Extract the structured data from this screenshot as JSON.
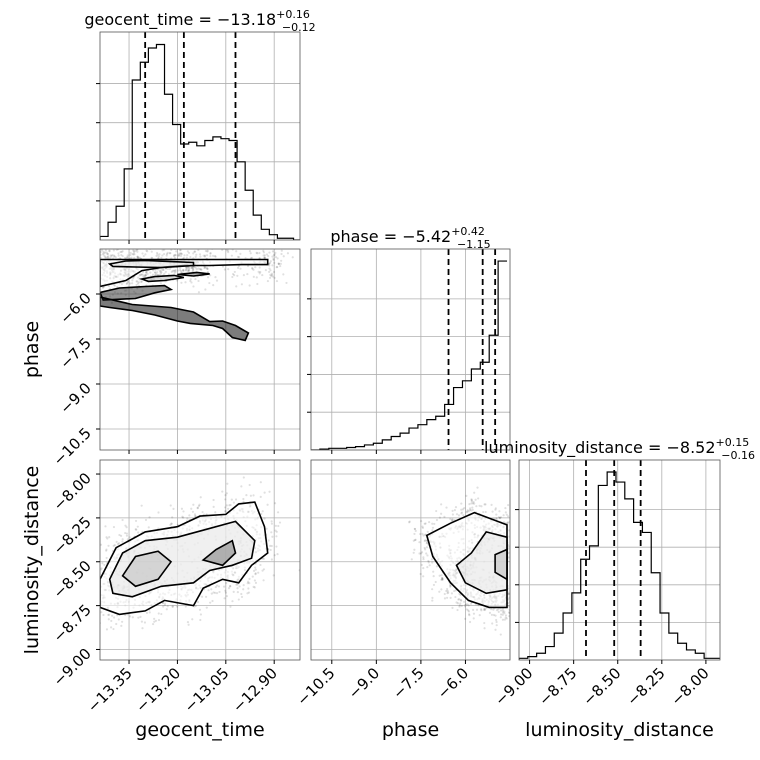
{
  "chart_data": {
    "type": "corner",
    "parameters": [
      "geocent_time",
      "phase",
      "luminosity_distance"
    ],
    "ranges": {
      "geocent_time": [
        -13.44,
        -12.82
      ],
      "phase": [
        -11.2,
        -4.5
      ],
      "luminosity_distance": [
        -9.06,
        -7.92
      ]
    },
    "ticks": {
      "geocent_time": [
        -13.35,
        -13.2,
        -13.05,
        -12.9
      ],
      "phase": [
        -10.5,
        -9.0,
        -7.5,
        -6.0
      ],
      "luminosity_distance": [
        -9.0,
        -8.75,
        -8.5,
        -8.25,
        -8.0
      ]
    },
    "tick_labels": {
      "geocent_time": [
        "−13.35",
        "−13.20",
        "−13.05",
        "−12.90"
      ],
      "phase": [
        "−10.5",
        "−9.0",
        "−7.5",
        "−6.0"
      ],
      "luminosity_distance": [
        "−9.00",
        "−8.75",
        "−8.50",
        "−8.25",
        "−8.00"
      ]
    },
    "titles": {
      "geocent_time": {
        "name": "geocent_time",
        "median": "−13.18",
        "plus": "+0.16",
        "minus": "−0.12"
      },
      "phase": {
        "name": "phase",
        "median": "−5.42",
        "plus": "+0.42",
        "minus": "−1.15"
      },
      "luminosity_distance": {
        "name": "luminosity_distance",
        "median": "−8.52",
        "plus": "+0.15",
        "minus": "−0.16"
      }
    },
    "quantiles": {
      "geocent_time": [
        -13.3,
        -13.18,
        -13.02
      ],
      "phase": [
        -6.57,
        -5.42,
        -5.0
      ],
      "luminosity_distance": [
        -8.68,
        -8.52,
        -8.37
      ]
    },
    "histograms": {
      "geocent_time": {
        "edges": [
          -13.44,
          -13.415,
          -13.39,
          -13.365,
          -13.34,
          -13.315,
          -13.29,
          -13.265,
          -13.24,
          -13.215,
          -13.19,
          -13.165,
          -13.14,
          -13.115,
          -13.09,
          -13.065,
          -13.04,
          -13.015,
          -12.99,
          -12.965,
          -12.94,
          -12.915,
          -12.89,
          -12.865,
          -12.84,
          -12.82
        ],
        "counts": [
          2,
          10,
          19,
          40,
          90,
          100,
          108,
          110,
          82,
          65,
          54,
          55,
          53,
          56,
          58,
          57,
          56,
          44,
          28,
          14,
          6,
          3,
          1,
          1,
          0
        ]
      },
      "phase": {
        "edges": [
          -11.2,
          -10.9,
          -10.6,
          -10.3,
          -10.0,
          -9.7,
          -9.4,
          -9.1,
          -8.8,
          -8.5,
          -8.2,
          -7.9,
          -7.6,
          -7.3,
          -7.0,
          -6.7,
          -6.4,
          -6.1,
          -5.8,
          -5.5,
          -5.2,
          -4.9,
          -4.6
        ],
        "counts": [
          0,
          0.5,
          1,
          1,
          1.5,
          2,
          3,
          4,
          6,
          8,
          10,
          13,
          15,
          18,
          20,
          27,
          37,
          41,
          48,
          52,
          68,
          112
        ]
      },
      "luminosity_distance": {
        "edges": [
          -9.06,
          -9.01,
          -8.96,
          -8.91,
          -8.86,
          -8.81,
          -8.76,
          -8.71,
          -8.66,
          -8.61,
          -8.56,
          -8.51,
          -8.46,
          -8.41,
          -8.36,
          -8.31,
          -8.26,
          -8.21,
          -8.16,
          -8.11,
          -8.06,
          -8.01,
          -7.96,
          -7.92
        ],
        "counts": [
          0.5,
          1,
          2,
          4,
          8,
          14,
          20,
          30,
          34,
          52,
          56,
          53,
          48,
          41,
          38,
          26,
          14,
          8,
          5,
          3,
          2,
          0.5,
          0.5
        ]
      }
    },
    "contours": {
      "phase_vs_geocent_time": [
        [
          [
            -13.44,
            -5.75
          ],
          [
            -13.36,
            -5.55
          ],
          [
            -13.31,
            -5.22
          ],
          [
            -13.24,
            -5.1
          ],
          [
            -13.18,
            -5.05
          ],
          [
            -13.1,
            -5.05
          ],
          [
            -13.0,
            -5.02
          ],
          [
            -12.92,
            -5.02
          ],
          [
            -12.92,
            -4.85
          ],
          [
            -13.44,
            -4.85
          ]
        ],
        [
          [
            -13.41,
            -5.0
          ],
          [
            -13.36,
            -4.9
          ],
          [
            -13.3,
            -4.88
          ],
          [
            -13.22,
            -4.92
          ],
          [
            -13.15,
            -4.95
          ],
          [
            -13.15,
            -5.05
          ],
          [
            -13.25,
            -5.12
          ],
          [
            -13.33,
            -5.1
          ],
          [
            -13.4,
            -5.08
          ]
        ],
        [
          [
            -13.31,
            -5.5
          ],
          [
            -13.27,
            -5.42
          ],
          [
            -13.21,
            -5.38
          ],
          [
            -13.18,
            -5.45
          ],
          [
            -13.24,
            -5.55
          ],
          [
            -13.29,
            -5.58
          ]
        ],
        [
          [
            -13.2,
            -5.35
          ],
          [
            -13.14,
            -5.28
          ],
          [
            -13.1,
            -5.33
          ],
          [
            -13.15,
            -5.4
          ]
        ],
        [
          [
            -13.44,
            -5.95
          ],
          [
            -13.38,
            -5.8
          ],
          [
            -13.3,
            -5.75
          ],
          [
            -13.24,
            -5.72
          ],
          [
            -13.22,
            -5.85
          ],
          [
            -13.27,
            -5.96
          ],
          [
            -13.33,
            -6.15
          ],
          [
            -13.43,
            -6.2
          ]
        ],
        [
          [
            -13.44,
            -6.1
          ],
          [
            -13.34,
            -6.35
          ],
          [
            -13.22,
            -6.45
          ],
          [
            -13.15,
            -6.6
          ],
          [
            -13.1,
            -6.92
          ],
          [
            -13.06,
            -6.9
          ],
          [
            -13.02,
            -7.05
          ],
          [
            -12.98,
            -7.3
          ],
          [
            -12.99,
            -7.55
          ],
          [
            -13.03,
            -7.45
          ],
          [
            -13.06,
            -7.15
          ],
          [
            -13.09,
            -7.05
          ],
          [
            -13.16,
            -6.98
          ],
          [
            -13.2,
            -6.9
          ],
          [
            -13.27,
            -6.7
          ],
          [
            -13.34,
            -6.55
          ],
          [
            -13.41,
            -6.45
          ],
          [
            -13.44,
            -6.4
          ]
        ]
      ],
      "luminosity_distance_vs_geocent_time": [
        [
          [
            -13.44,
            -8.6
          ],
          [
            -13.39,
            -8.42
          ],
          [
            -13.3,
            -8.33
          ],
          [
            -13.2,
            -8.3
          ],
          [
            -13.13,
            -8.24
          ],
          [
            -13.05,
            -8.23
          ],
          [
            -13.01,
            -8.17
          ],
          [
            -12.96,
            -8.16
          ],
          [
            -12.93,
            -8.3
          ],
          [
            -12.92,
            -8.45
          ],
          [
            -12.97,
            -8.52
          ],
          [
            -13.01,
            -8.62
          ],
          [
            -13.06,
            -8.6
          ],
          [
            -13.12,
            -8.65
          ],
          [
            -13.15,
            -8.75
          ],
          [
            -13.24,
            -8.72
          ],
          [
            -13.3,
            -8.78
          ],
          [
            -13.38,
            -8.8
          ],
          [
            -13.44,
            -8.76
          ]
        ],
        [
          [
            -13.41,
            -8.6
          ],
          [
            -13.37,
            -8.45
          ],
          [
            -13.3,
            -8.38
          ],
          [
            -13.2,
            -8.36
          ],
          [
            -13.12,
            -8.32
          ],
          [
            -13.02,
            -8.27
          ],
          [
            -12.96,
            -8.38
          ],
          [
            -12.97,
            -8.48
          ],
          [
            -13.03,
            -8.52
          ],
          [
            -13.1,
            -8.55
          ],
          [
            -13.15,
            -8.62
          ],
          [
            -13.25,
            -8.64
          ],
          [
            -13.34,
            -8.7
          ],
          [
            -13.4,
            -8.68
          ]
        ],
        [
          [
            -13.37,
            -8.58
          ],
          [
            -13.33,
            -8.47
          ],
          [
            -13.26,
            -8.44
          ],
          [
            -13.22,
            -8.5
          ],
          [
            -13.26,
            -8.6
          ],
          [
            -13.33,
            -8.64
          ]
        ],
        [
          [
            -13.12,
            -8.49
          ],
          [
            -13.08,
            -8.43
          ],
          [
            -13.03,
            -8.38
          ],
          [
            -13.02,
            -8.45
          ],
          [
            -13.06,
            -8.52
          ]
        ]
      ],
      "luminosity_distance_vs_phase": [
        [
          [
            -4.6,
            -8.29
          ],
          [
            -5.7,
            -8.22
          ],
          [
            -6.5,
            -8.28
          ],
          [
            -7.3,
            -8.35
          ],
          [
            -7.1,
            -8.47
          ],
          [
            -6.5,
            -8.62
          ],
          [
            -5.9,
            -8.72
          ],
          [
            -5.2,
            -8.76
          ],
          [
            -4.6,
            -8.76
          ]
        ],
        [
          [
            -4.6,
            -8.36
          ],
          [
            -5.3,
            -8.33
          ],
          [
            -5.8,
            -8.45
          ],
          [
            -6.3,
            -8.52
          ],
          [
            -6.0,
            -8.62
          ],
          [
            -5.3,
            -8.68
          ],
          [
            -4.6,
            -8.66
          ]
        ],
        [
          [
            -4.6,
            -8.43
          ],
          [
            -5.0,
            -8.46
          ],
          [
            -5.0,
            -8.56
          ],
          [
            -4.6,
            -8.6
          ]
        ]
      ]
    },
    "grid": true
  }
}
